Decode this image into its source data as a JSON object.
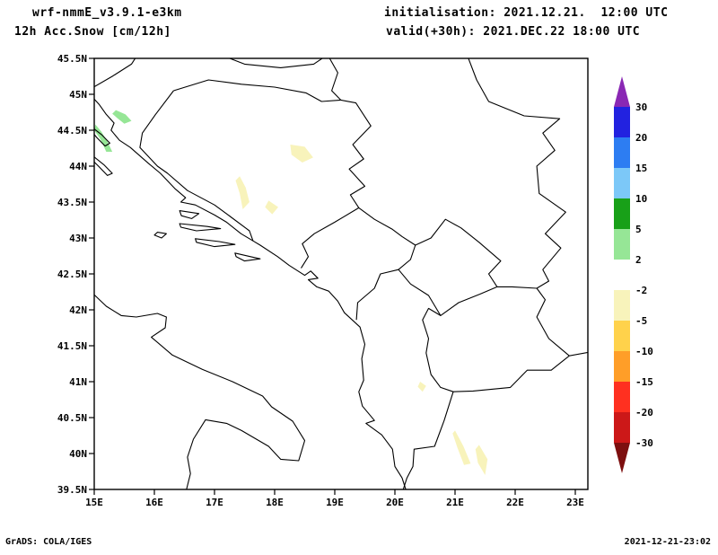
{
  "header": {
    "model": "wrf-nmmE_v3.9.1-e3km",
    "product": "12h Acc.Snow [cm/12h]",
    "init": "initialisation: 2021.12.21.  12:00 UTC",
    "valid": "valid(+30h): 2021.DEC.22 18:00 UTC"
  },
  "footer": {
    "left": "GrADS: COLA/IGES",
    "right": "2021-12-21-23:02"
  },
  "chart_data": {
    "type": "heatmap",
    "title": "12h Acc.Snow [cm/12h]",
    "model": "wrf-nmmE_v3.9.1-e3km",
    "projection": "latlon",
    "region": "Adriatic / Balkans",
    "grid": "off",
    "x_axis": {
      "label": "longitude",
      "tick_labels": [
        "15E",
        "16E",
        "17E",
        "18E",
        "19E",
        "20E",
        "21E",
        "22E",
        "23E"
      ],
      "tick_values": [
        15,
        16,
        17,
        18,
        19,
        20,
        21,
        22,
        23
      ],
      "range": [
        15,
        23.2
      ]
    },
    "y_axis": {
      "label": "latitude",
      "tick_labels": [
        "45.5N",
        "45N",
        "44.5N",
        "44N",
        "43.5N",
        "43N",
        "42.5N",
        "42N",
        "41.5N",
        "41N",
        "40.5N",
        "40N",
        "39.5N"
      ],
      "tick_values": [
        45.5,
        45,
        44.5,
        44,
        43.5,
        43,
        42.5,
        42,
        41.5,
        41,
        40.5,
        40,
        39.5
      ],
      "range": [
        39.5,
        45.5
      ]
    },
    "colorbar": {
      "unit": "cm/12h",
      "position": "right",
      "levels": [
        "30",
        "20",
        "15",
        "10",
        "5",
        "2",
        "-2",
        "-5",
        "-10",
        "-15",
        "-20",
        "-30"
      ],
      "colors_top_to_bottom": [
        "#8a28b4",
        "#2222e0",
        "#2d7df2",
        "#7cc8f8",
        "#18a018",
        "#96e696",
        "#ffffff",
        "#f8f3bb",
        "#ffd24b",
        "#ff9e28",
        "#ff3020",
        "#cc1818",
        "#7d0f0f"
      ]
    },
    "features": [
      {
        "name": "snow-patch-velebit-coast",
        "value_band": "2-5",
        "color": "#96e696",
        "polygon_lonlat": [
          [
            15.02,
            44.58
          ],
          [
            15.12,
            44.48
          ],
          [
            15.22,
            44.34
          ],
          [
            15.3,
            44.2
          ],
          [
            15.2,
            44.2
          ],
          [
            15.1,
            44.38
          ],
          [
            15.0,
            44.5
          ]
        ]
      },
      {
        "name": "snow-patch-velebit-inland",
        "value_band": "2-5",
        "color": "#96e696",
        "polygon_lonlat": [
          [
            15.36,
            44.78
          ],
          [
            15.52,
            44.72
          ],
          [
            15.62,
            44.63
          ],
          [
            15.5,
            44.59
          ],
          [
            15.38,
            44.67
          ],
          [
            15.3,
            44.73
          ]
        ]
      },
      {
        "name": "pale-patch-central-bosnia",
        "value_band": "-2--5",
        "color": "#f8f3bb",
        "polygon_lonlat": [
          [
            18.26,
            44.3
          ],
          [
            18.5,
            44.27
          ],
          [
            18.64,
            44.12
          ],
          [
            18.46,
            44.05
          ],
          [
            18.28,
            44.16
          ]
        ]
      },
      {
        "name": "pale-patch-herzegovina",
        "value_band": "-2--5",
        "color": "#f8f3bb",
        "polygon_lonlat": [
          [
            17.42,
            43.86
          ],
          [
            17.52,
            43.7
          ],
          [
            17.58,
            43.5
          ],
          [
            17.47,
            43.4
          ],
          [
            17.42,
            43.62
          ],
          [
            17.35,
            43.8
          ]
        ]
      },
      {
        "name": "pale-patch-herzegovina-south",
        "value_band": "-2--5",
        "color": "#f8f3bb",
        "polygon_lonlat": [
          [
            17.9,
            43.52
          ],
          [
            18.06,
            43.43
          ],
          [
            17.96,
            43.33
          ],
          [
            17.84,
            43.43
          ]
        ]
      },
      {
        "name": "pale-patch-albania-east",
        "value_band": "-2--5",
        "color": "#f8f3bb",
        "polygon_lonlat": [
          [
            20.42,
            41.0
          ],
          [
            20.52,
            40.94
          ],
          [
            20.46,
            40.86
          ],
          [
            20.38,
            40.93
          ]
        ]
      },
      {
        "name": "pale-patch-pindus-west",
        "value_band": "-2--5",
        "color": "#f8f3bb",
        "polygon_lonlat": [
          [
            21.0,
            40.32
          ],
          [
            21.14,
            40.1
          ],
          [
            21.26,
            39.86
          ],
          [
            21.15,
            39.84
          ],
          [
            21.04,
            40.08
          ],
          [
            20.96,
            40.28
          ]
        ]
      },
      {
        "name": "pale-patch-pindus-east",
        "value_band": "-2--5",
        "color": "#f8f3bb",
        "polygon_lonlat": [
          [
            21.4,
            40.12
          ],
          [
            21.54,
            39.92
          ],
          [
            21.5,
            39.7
          ],
          [
            21.38,
            39.87
          ],
          [
            21.34,
            40.06
          ]
        ]
      }
    ]
  }
}
